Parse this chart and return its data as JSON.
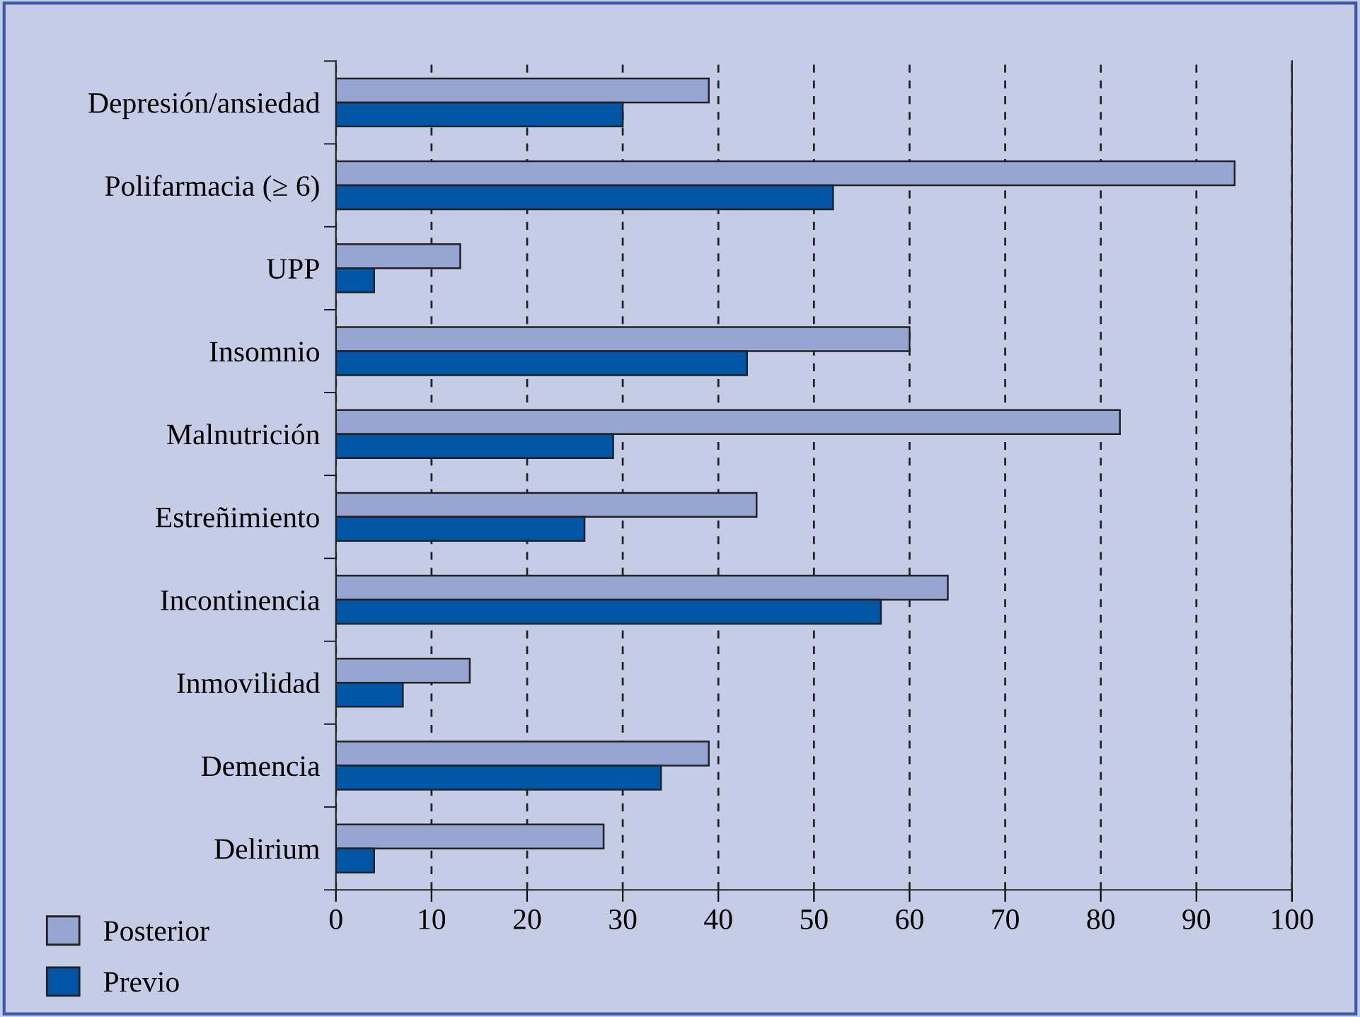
{
  "chart_data": {
    "type": "bar",
    "orientation": "horizontal",
    "categories": [
      "Depresión/ansiedad",
      "Polifarmacia (≥ 6)",
      "UPP",
      "Insomnio",
      "Malnutrición",
      "Estreñimiento",
      "Incontinencia",
      "Inmovilidad",
      "Demencia",
      "Delirium"
    ],
    "series": [
      {
        "name": "Posterior",
        "color": "#96a5d2",
        "values": [
          39,
          94,
          13,
          60,
          82,
          44,
          64,
          14,
          39,
          28
        ]
      },
      {
        "name": "Previo",
        "color": "#0055a5",
        "values": [
          30,
          52,
          4,
          43,
          29,
          26,
          57,
          7,
          34,
          4
        ]
      }
    ],
    "xlim": [
      0,
      100
    ],
    "xticks": [
      0,
      10,
      20,
      30,
      40,
      50,
      60,
      70,
      80,
      90,
      100
    ],
    "grid": "x",
    "legend": "bottom left"
  }
}
